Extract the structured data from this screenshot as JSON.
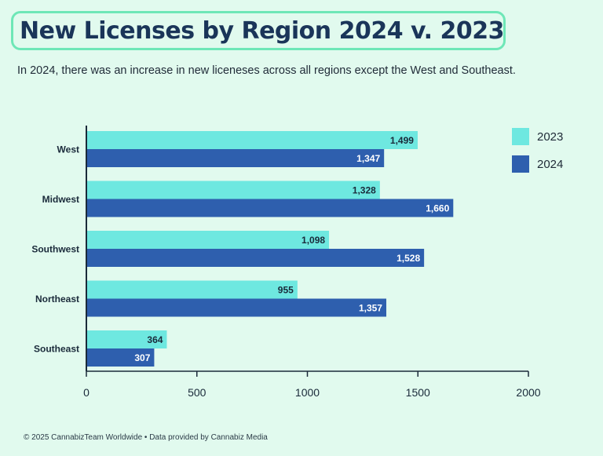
{
  "title": "New Licenses by Region 2024 v. 2023",
  "subtitle": "In 2024, there was an increase in new liceneses across all regions except the West and Southeast.",
  "footer": "© 2025 CannabizTeam Worldwide • Data provided by Cannabiz Media",
  "colors": {
    "background": "#e1faee",
    "series_2023": "#6ee8e0",
    "series_2024": "#2e5fae",
    "axis": "#1a2a3a"
  },
  "chart_data": {
    "type": "bar",
    "orientation": "horizontal",
    "categories": [
      "West",
      "Midwest",
      "Southwest",
      "Northeast",
      "Southeast"
    ],
    "series": [
      {
        "name": "2023",
        "values": [
          1499,
          1328,
          1098,
          955,
          364
        ],
        "labels": [
          "1,499",
          "1,328",
          "1,098",
          "955",
          "364"
        ]
      },
      {
        "name": "2024",
        "values": [
          1347,
          1660,
          1528,
          1357,
          307
        ],
        "labels": [
          "1,347",
          "1,660",
          "1,528",
          "1,357",
          "307"
        ]
      }
    ],
    "xlim": [
      0,
      2000
    ],
    "xticks": [
      0,
      500,
      1000,
      1500,
      2000
    ],
    "xtick_labels": [
      "0",
      "500",
      "1000",
      "1500",
      "2000"
    ],
    "legend_position": "top-right",
    "grid": false
  }
}
